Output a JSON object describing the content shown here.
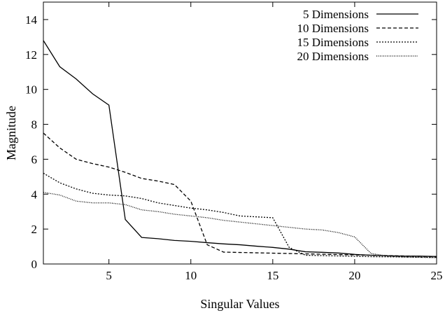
{
  "chart_data": {
    "type": "line",
    "title": "",
    "xlabel": "Singular Values",
    "ylabel": "Magnitude",
    "xlim": [
      1,
      25
    ],
    "ylim": [
      0,
      15
    ],
    "xticks": [
      5,
      10,
      15,
      20,
      25
    ],
    "yticks": [
      0,
      2,
      4,
      6,
      8,
      10,
      12,
      14
    ],
    "grid": false,
    "legend_position": "top-right",
    "x": [
      1,
      2,
      3,
      4,
      5,
      6,
      7,
      8,
      9,
      10,
      11,
      12,
      13,
      14,
      15,
      16,
      17,
      18,
      19,
      20,
      21,
      22,
      23,
      24,
      25
    ],
    "series": [
      {
        "name": "5 Dimensions",
        "dash": "solid",
        "values": [
          12.8,
          11.3,
          10.6,
          9.75,
          9.1,
          2.55,
          1.52,
          1.45,
          1.35,
          1.3,
          1.22,
          1.15,
          1.1,
          1.02,
          0.95,
          0.85,
          0.7,
          0.67,
          0.63,
          0.55,
          0.5,
          0.47,
          0.45,
          0.45,
          0.43
        ]
      },
      {
        "name": "10 Dimensions",
        "dash": "dashed",
        "values": [
          7.5,
          6.65,
          6.0,
          5.75,
          5.55,
          5.25,
          4.9,
          4.75,
          4.55,
          3.6,
          1.1,
          0.68,
          0.66,
          0.64,
          0.62,
          0.6,
          0.58,
          0.56,
          0.54,
          0.52,
          0.5,
          0.48,
          0.46,
          0.44,
          0.42
        ]
      },
      {
        "name": "15 Dimensions",
        "dash": "dotted",
        "values": [
          5.2,
          4.65,
          4.3,
          4.05,
          3.95,
          3.9,
          3.75,
          3.5,
          3.35,
          3.2,
          3.1,
          2.95,
          2.75,
          2.7,
          2.65,
          0.95,
          0.5,
          0.48,
          0.46,
          0.44,
          0.42,
          0.41,
          0.4,
          0.39,
          0.38
        ]
      },
      {
        "name": "20 Dimensions",
        "dash": "densely-dotted",
        "values": [
          4.1,
          3.95,
          3.6,
          3.5,
          3.5,
          3.4,
          3.1,
          3.0,
          2.85,
          2.75,
          2.65,
          2.5,
          2.4,
          2.3,
          2.2,
          2.1,
          2.0,
          1.95,
          1.8,
          1.55,
          0.6,
          0.45,
          0.4,
          0.38,
          0.36
        ]
      }
    ]
  }
}
